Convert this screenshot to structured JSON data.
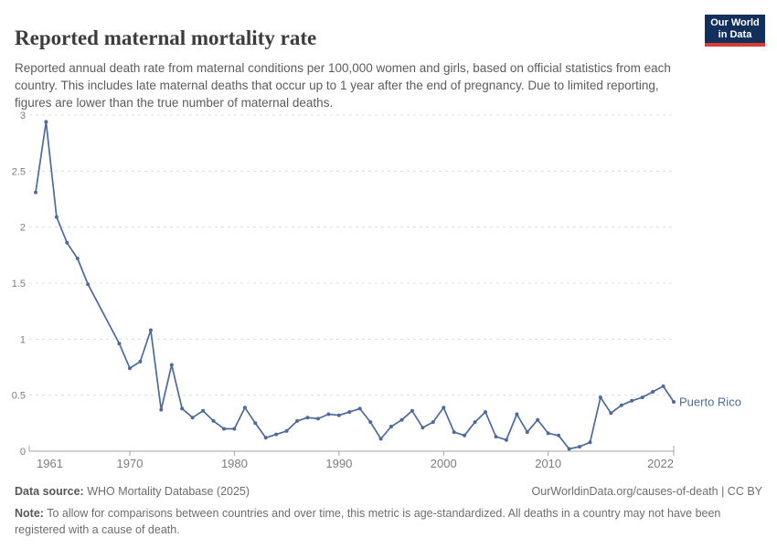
{
  "header": {
    "title": "Reported maternal mortality rate",
    "subtitle": "Reported annual death rate from maternal conditions per 100,000 women and girls, based on official statistics from each country. This includes late maternal deaths that occur up to 1 year after the end of pregnancy. Due to limited reporting, figures are lower than the true number of maternal deaths.",
    "logo": {
      "line1": "Our World",
      "line2": "in Data"
    }
  },
  "chart_data": {
    "type": "line",
    "title": "Reported maternal mortality rate",
    "xlabel": "",
    "ylabel": "",
    "ylim": [
      0,
      3
    ],
    "xlim": [
      1961,
      2022
    ],
    "y_ticks": [
      0,
      0.5,
      1,
      1.5,
      2,
      2.5,
      3
    ],
    "x_ticks": [
      1961,
      1970,
      1980,
      1990,
      2000,
      2010,
      2022
    ],
    "grid": "horizontal-dashed",
    "legend_position": "end-of-line-label",
    "series": [
      {
        "name": "Puerto Rico",
        "color": "#4c6a9c",
        "points": [
          [
            1961,
            2.31
          ],
          [
            1962,
            2.94
          ],
          [
            1963,
            2.09
          ],
          [
            1964,
            1.86
          ],
          [
            1965,
            1.72
          ],
          [
            1966,
            1.49
          ],
          [
            1967,
            null
          ],
          [
            1968,
            null
          ],
          [
            1969,
            0.96
          ],
          [
            1970,
            0.74
          ],
          [
            1971,
            0.8
          ],
          [
            1972,
            1.08
          ],
          [
            1973,
            0.37
          ],
          [
            1974,
            0.77
          ],
          [
            1975,
            0.38
          ],
          [
            1976,
            0.3
          ],
          [
            1977,
            0.36
          ],
          [
            1978,
            0.27
          ],
          [
            1979,
            0.2
          ],
          [
            1980,
            0.2
          ],
          [
            1981,
            0.39
          ],
          [
            1982,
            0.25
          ],
          [
            1983,
            0.12
          ],
          [
            1984,
            0.15
          ],
          [
            1985,
            0.18
          ],
          [
            1986,
            0.27
          ],
          [
            1987,
            0.3
          ],
          [
            1988,
            0.29
          ],
          [
            1989,
            0.33
          ],
          [
            1990,
            0.32
          ],
          [
            1991,
            0.35
          ],
          [
            1992,
            0.38
          ],
          [
            1993,
            0.26
          ],
          [
            1994,
            0.11
          ],
          [
            1995,
            0.22
          ],
          [
            1996,
            0.28
          ],
          [
            1997,
            0.36
          ],
          [
            1998,
            0.21
          ],
          [
            1999,
            0.26
          ],
          [
            2000,
            0.39
          ],
          [
            2001,
            0.17
          ],
          [
            2002,
            0.14
          ],
          [
            2003,
            0.26
          ],
          [
            2004,
            0.35
          ],
          [
            2005,
            0.13
          ],
          [
            2006,
            0.1
          ],
          [
            2007,
            0.33
          ],
          [
            2008,
            0.17
          ],
          [
            2009,
            0.28
          ],
          [
            2010,
            0.16
          ],
          [
            2011,
            0.14
          ],
          [
            2012,
            0.02
          ],
          [
            2013,
            0.04
          ],
          [
            2014,
            0.08
          ],
          [
            2015,
            0.48
          ],
          [
            2016,
            0.34
          ],
          [
            2017,
            0.41
          ],
          [
            2018,
            0.45
          ],
          [
            2019,
            0.48
          ],
          [
            2020,
            0.53
          ],
          [
            2021,
            0.58
          ],
          [
            2022,
            0.44
          ]
        ]
      }
    ]
  },
  "footer": {
    "datasource_label": "Data source:",
    "datasource_value": " WHO Mortality Database (2025)",
    "link": "OurWorldinData.org/causes-of-death",
    "separator": " | ",
    "license": "CC BY",
    "note_label": "Note:",
    "note_value": " To allow for comparisons between countries and over time, this metric is age-standardized. All deaths in a country may not have been registered with a cause of death."
  },
  "colors": {
    "line": "#4c6a9c",
    "entity_label": "#4c6a9c",
    "grid": "#dcdcdc",
    "axis": "#a3a3a3",
    "tick_label": "#7c7c7c",
    "logo_bg": "#12305b",
    "logo_accent": "#d83c33",
    "title_text": "#3c3c3c",
    "subtitle_text": "#5c5c5c",
    "footer_text": "#6d6d6d"
  }
}
